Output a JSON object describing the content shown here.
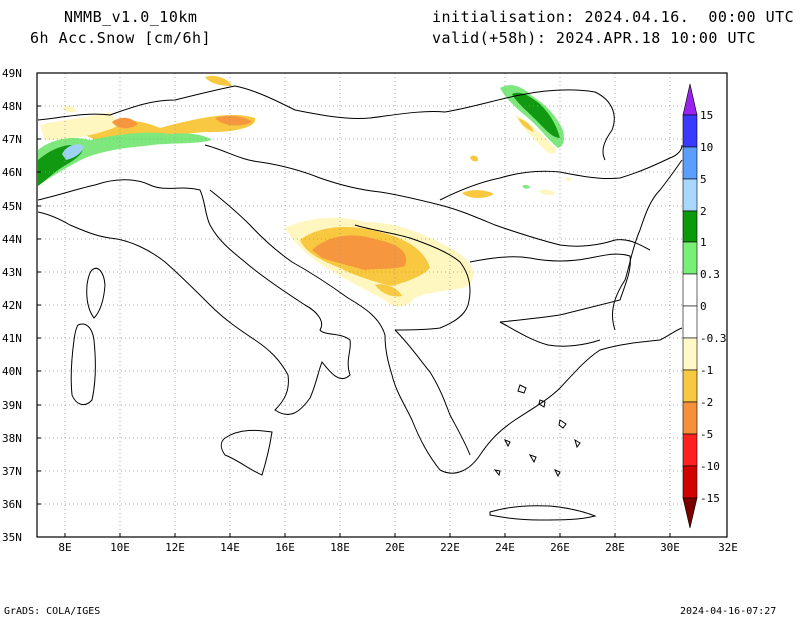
{
  "header": {
    "model": "NMMB_v1.0_10km",
    "field": "6h Acc.Snow [cm/6h]",
    "init": "initialisation: 2024.04.16.  00:00 UTC",
    "valid": "valid(+58h): 2024.APR.18 10:00 UTC"
  },
  "footer": {
    "credit": "GrADS: COLA/IGES",
    "timestamp": "2024-04-16-07:27"
  },
  "axes": {
    "lat_labels": [
      "49N",
      "48N",
      "47N",
      "46N",
      "45N",
      "44N",
      "43N",
      "42N",
      "41N",
      "40N",
      "39N",
      "38N",
      "37N",
      "36N",
      "35N"
    ],
    "lon_labels": [
      "8E",
      "10E",
      "12E",
      "14E",
      "16E",
      "18E",
      "20E",
      "22E",
      "24E",
      "26E",
      "28E",
      "30E",
      "32E"
    ]
  },
  "colorbar": {
    "labels": [
      "15",
      "10",
      "5",
      "2",
      "1",
      "0.3",
      "0",
      "-0.3",
      "-1",
      "-2",
      "-5",
      "-10",
      "-15"
    ],
    "colors": {
      "gt15": "#9a22f0",
      "c10": "#3a3aff",
      "c5": "#5a9eff",
      "c2": "#a8d8ff",
      "c1": "#0a9a0a",
      "c03": "#78f078",
      "c0pos": "#ffffff",
      "c0neg": "#ffffff",
      "cm03": "#fff9c8",
      "cm1": "#f7c840",
      "cm2": "#f6903a",
      "cm5": "#ff2020",
      "cm10": "#d20000",
      "lt15": "#7a0000"
    }
  },
  "snow_colors": {
    "light_yellow": "#fff6c0",
    "yellow": "#f7c840",
    "orange": "#f6963e",
    "light_green": "#7ee87e",
    "green": "#119a11",
    "light_blue": "#9dd2f5"
  }
}
